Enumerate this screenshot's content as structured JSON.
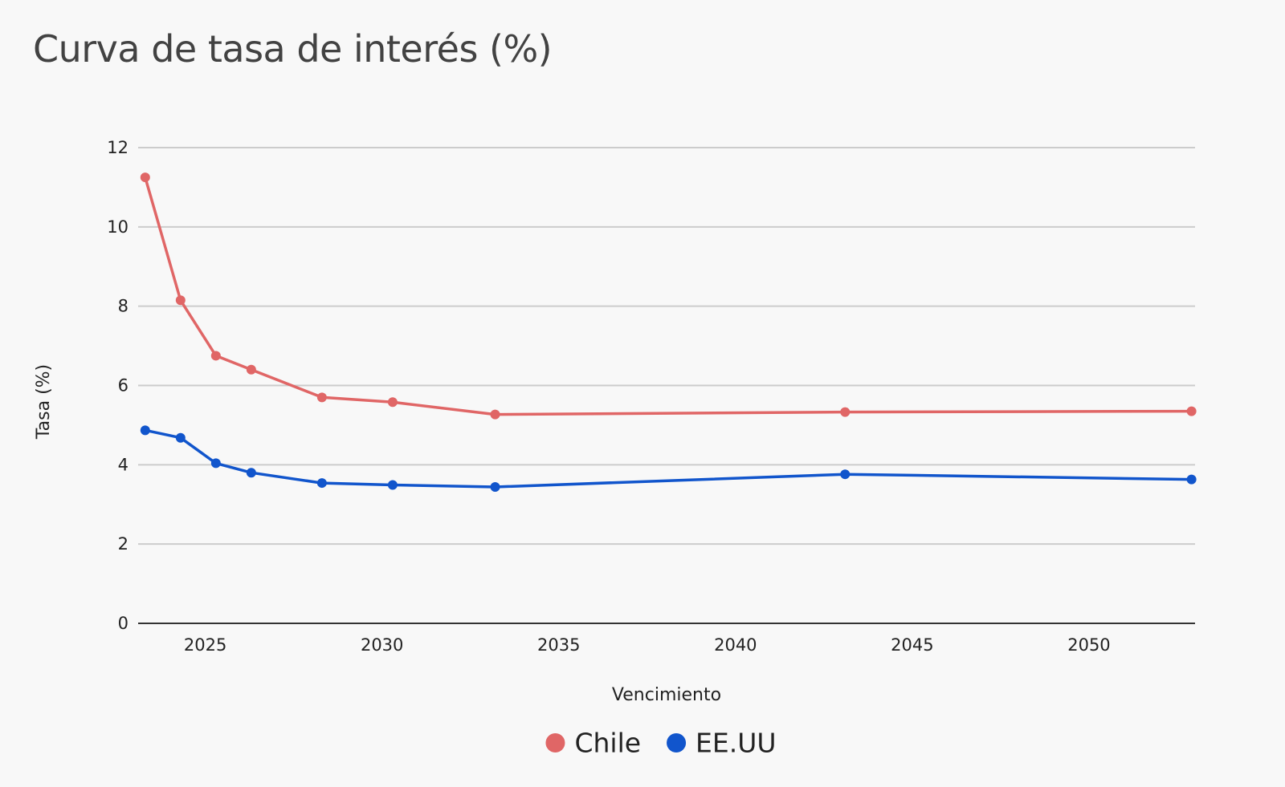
{
  "chart_data": {
    "type": "line",
    "title": "Curva de tasa de interés (%)",
    "xlabel": "Vencimiento",
    "ylabel": "Tasa (%)",
    "xlim": [
      2023.1,
      2053.0
    ],
    "ylim": [
      0,
      12
    ],
    "x_ticks": [
      2025,
      2030,
      2035,
      2040,
      2045,
      2050
    ],
    "y_ticks": [
      0,
      2,
      4,
      6,
      8,
      10,
      12
    ],
    "grid": true,
    "legend_position": "bottom",
    "series": [
      {
        "name": "Chile",
        "color": "#e06666",
        "points": [
          {
            "x": 2023.3,
            "y": 11.25
          },
          {
            "x": 2024.3,
            "y": 8.15
          },
          {
            "x": 2025.3,
            "y": 6.75
          },
          {
            "x": 2026.3,
            "y": 6.4
          },
          {
            "x": 2028.3,
            "y": 5.7
          },
          {
            "x": 2030.3,
            "y": 5.58
          },
          {
            "x": 2033.2,
            "y": 5.27
          },
          {
            "x": 2043.1,
            "y": 5.33
          },
          {
            "x": 2052.9,
            "y": 5.35
          }
        ]
      },
      {
        "name": "EE.UU",
        "color": "#1155cc",
        "points": [
          {
            "x": 2023.3,
            "y": 4.87
          },
          {
            "x": 2024.3,
            "y": 4.68
          },
          {
            "x": 2025.3,
            "y": 4.04
          },
          {
            "x": 2026.3,
            "y": 3.8
          },
          {
            "x": 2028.3,
            "y": 3.54
          },
          {
            "x": 2030.3,
            "y": 3.49
          },
          {
            "x": 2033.2,
            "y": 3.44
          },
          {
            "x": 2043.1,
            "y": 3.76
          },
          {
            "x": 2052.9,
            "y": 3.63
          }
        ]
      }
    ]
  }
}
